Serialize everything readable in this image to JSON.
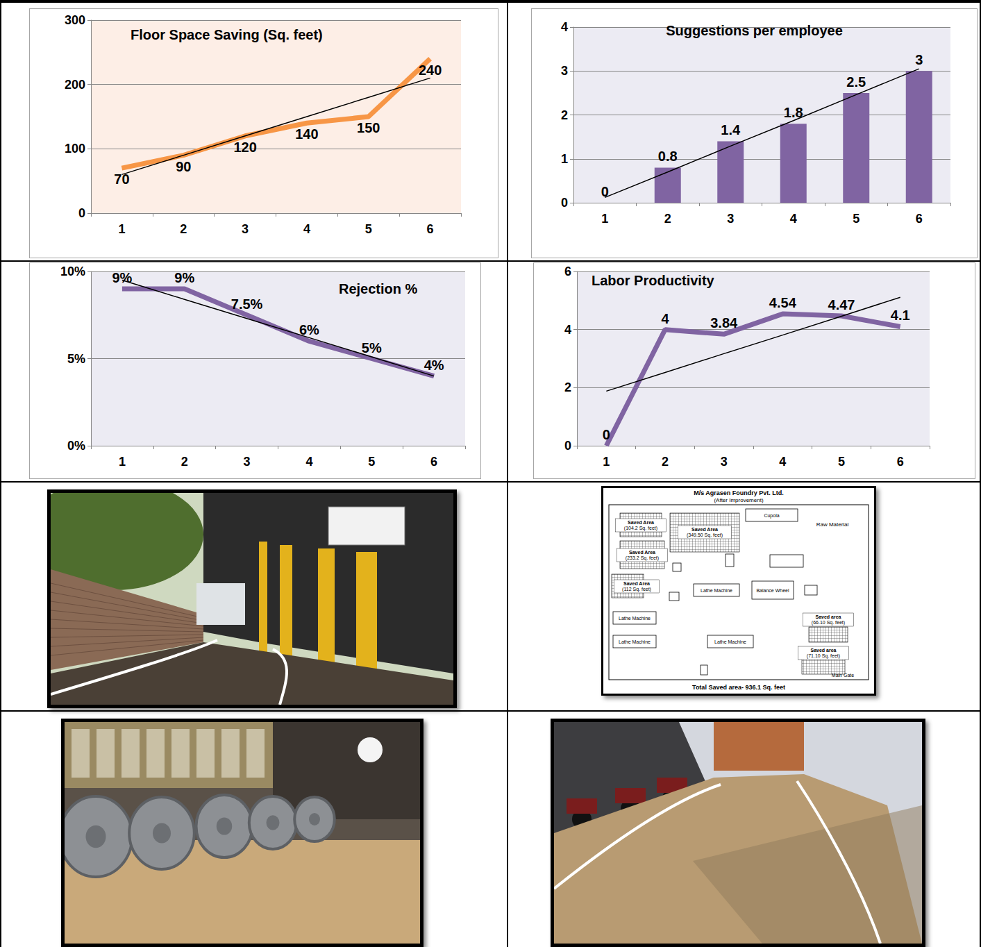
{
  "chart_data": [
    {
      "type": "line",
      "title": "Floor Space Saving (Sq. feet)",
      "categories": [
        "1",
        "2",
        "3",
        "4",
        "5",
        "6"
      ],
      "series": [
        {
          "type": "line",
          "color": "#f79646",
          "marker": "none",
          "line_style": "solid",
          "data_labels": true,
          "values": [
            70,
            90,
            120,
            140,
            150,
            240
          ]
        },
        {
          "type": "line",
          "color": "#000000",
          "marker": "none",
          "line_style": "solid",
          "values": [
            60,
            90,
            120,
            150,
            180,
            210
          ]
        }
      ],
      "ylim": [
        0,
        300
      ],
      "yticks": [
        0,
        100,
        200,
        300
      ],
      "grid": true
    },
    {
      "type": "bar",
      "title": "Suggestions per employee",
      "categories": [
        "1",
        "2",
        "3",
        "4",
        "5",
        "6"
      ],
      "series": [
        {
          "type": "bar",
          "color": "#8064a2",
          "data_labels": true,
          "values": [
            0,
            0.8,
            1.4,
            1.8,
            2.5,
            3
          ]
        },
        {
          "type": "line",
          "color": "#000000",
          "marker": "none",
          "line_style": "solid",
          "values": [
            0.12,
            0.7,
            1.29,
            1.87,
            2.46,
            3.05
          ]
        }
      ],
      "ylim": [
        0,
        4
      ],
      "yticks": [
        0,
        1,
        2,
        3,
        4
      ],
      "grid": true
    },
    {
      "type": "line",
      "title": "Rejection %",
      "categories": [
        "1",
        "2",
        "3",
        "4",
        "5",
        "6"
      ],
      "series": [
        {
          "type": "line",
          "color": "#8064a2",
          "marker": "none",
          "line_style": "solid",
          "data_labels": true,
          "values": [
            9,
            9,
            7.5,
            6,
            5,
            4
          ],
          "value_labels": [
            "9%",
            "9%",
            "7.5%",
            "6%",
            "5%",
            "4%"
          ]
        },
        {
          "type": "line",
          "color": "#000000",
          "marker": "none",
          "line_style": "solid",
          "values": [
            9.5,
            8.4,
            7.3,
            6.2,
            5.1,
            4.0
          ]
        }
      ],
      "ylim": [
        0,
        10
      ],
      "yticks": [
        {
          "value": 0,
          "label": "0%"
        },
        {
          "value": 5,
          "label": "5%"
        },
        {
          "value": 10,
          "label": "10%"
        }
      ],
      "grid": true
    },
    {
      "type": "line",
      "title": "Labor Productivity",
      "categories": [
        "1",
        "2",
        "3",
        "4",
        "5",
        "6"
      ],
      "series": [
        {
          "type": "line",
          "color": "#8064a2",
          "marker": "none",
          "line_style": "solid",
          "data_labels": true,
          "values": [
            0,
            4,
            3.84,
            4.54,
            4.47,
            4.1
          ]
        },
        {
          "type": "line",
          "color": "#000000",
          "marker": "none",
          "line_style": "solid",
          "values": [
            1.88,
            2.52,
            3.17,
            3.81,
            4.46,
            5.11
          ]
        }
      ],
      "ylim": [
        0,
        6
      ],
      "yticks": [
        0,
        2,
        4,
        6
      ],
      "grid": true
    }
  ],
  "diagram": {
    "title": "M/s Agrasen Foundry Pvt. Ltd.",
    "subtitle": "(After Improvement)",
    "cupola": "Cupola",
    "raw_material": "Raw Material",
    "lathe": "Lathe Machine",
    "balance_wheel": "Balance Wheel",
    "main_gate": "Main Gate",
    "saved_areas": [
      {
        "name": "Saved Area",
        "area": "(104.2 Sq. feet)"
      },
      {
        "name": "Saved Area",
        "area": "(349.50 Sq. feet)"
      },
      {
        "name": "Saved Area",
        "area": "(233.2 Sq. feet)"
      },
      {
        "name": "Saved Area",
        "area": "(112 Sq. feet)"
      },
      {
        "name": "Saved area",
        "area": "(66.10 Sq. feet)"
      },
      {
        "name": "Saved area",
        "area": "(71.10 Sq. feet)"
      }
    ],
    "total": "Total Saved area- 936.1 Sq. feet"
  }
}
